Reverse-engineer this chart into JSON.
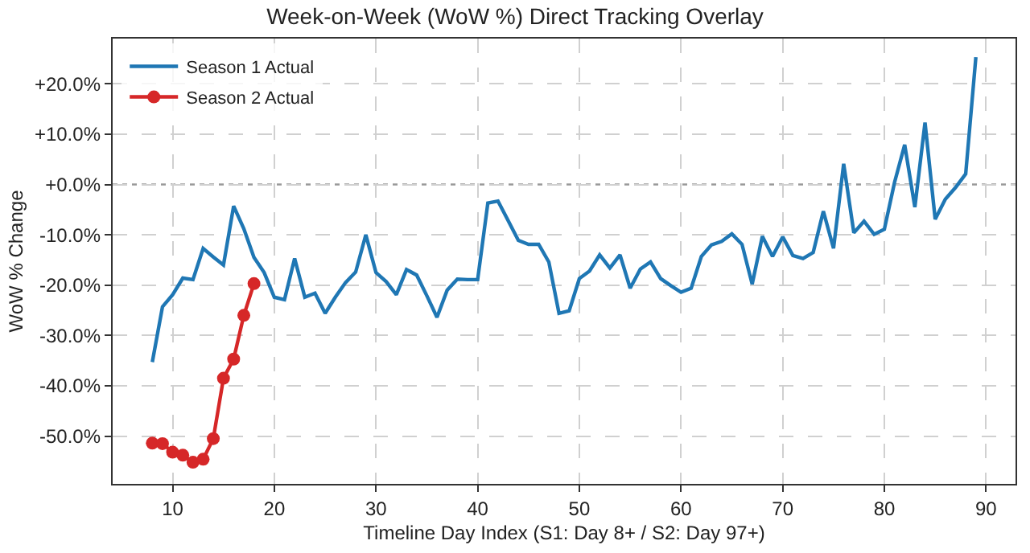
{
  "chart_data": {
    "type": "line",
    "title": "Week-on-Week (WoW %) Direct Tracking Overlay",
    "xlabel": "Timeline Day Index (S1: Day 8+ / S2: Day 97+)",
    "ylabel": "WoW % Change",
    "xlim": [
      4.1,
      92.9
    ],
    "xticks": [
      10,
      20,
      30,
      40,
      50,
      60,
      70,
      80,
      90
    ],
    "ylim": [
      -59.5,
      29
    ],
    "yticks": [
      {
        "value": -50,
        "label": "-50.0%"
      },
      {
        "value": -40,
        "label": "-40.0%"
      },
      {
        "value": -30,
        "label": "-30.0%"
      },
      {
        "value": -20,
        "label": "-20.0%"
      },
      {
        "value": -10,
        "label": "-10.0%"
      },
      {
        "value": 0,
        "label": "+0.0%"
      },
      {
        "value": 10,
        "label": "+10.0%"
      },
      {
        "value": 20,
        "label": "+20.0%"
      }
    ],
    "grid": true,
    "legend": "top left",
    "ref_lines": [
      {
        "axis": "y",
        "value": 0,
        "color": "#999999",
        "line_style": "dotted"
      }
    ],
    "series": [
      {
        "name": "Season 1 Actual",
        "color": "#1f77b4",
        "marker": "none",
        "x": [
          8,
          9,
          10,
          11,
          12,
          13,
          14,
          15,
          16,
          17,
          18,
          19,
          20,
          21,
          22,
          23,
          24,
          25,
          26,
          27,
          28,
          29,
          30,
          31,
          32,
          33,
          34,
          35,
          36,
          37,
          38,
          39,
          40,
          41,
          42,
          43,
          44,
          45,
          46,
          47,
          48,
          49,
          50,
          51,
          52,
          53,
          54,
          55,
          56,
          57,
          58,
          59,
          60,
          61,
          62,
          63,
          64,
          65,
          66,
          67,
          68,
          69,
          70,
          71,
          72,
          73,
          74,
          75,
          76,
          77,
          78,
          79,
          80,
          81,
          82,
          83,
          84,
          85,
          86,
          87,
          88,
          89
        ],
        "values": [
          -35.3,
          -24.3,
          -21.9,
          -18.6,
          -18.9,
          -12.7,
          -14.4,
          -16.0,
          -4.3,
          -8.8,
          -14.5,
          -17.5,
          -22.4,
          -22.9,
          -14.7,
          -22.4,
          -21.6,
          -25.6,
          -22.4,
          -19.5,
          -17.4,
          -10.0,
          -17.5,
          -19.3,
          -21.9,
          -16.9,
          -18.0,
          -22.1,
          -26.4,
          -21.0,
          -18.8,
          -18.9,
          -18.9,
          -3.7,
          -3.3,
          -7.2,
          -11.1,
          -11.9,
          -11.9,
          -15.4,
          -25.6,
          -25.1,
          -18.7,
          -17.2,
          -14.0,
          -16.6,
          -14.0,
          -20.6,
          -16.8,
          -15.4,
          -18.7,
          -20.1,
          -21.4,
          -20.6,
          -14.3,
          -12.0,
          -11.3,
          -9.8,
          -11.9,
          -19.8,
          -10.3,
          -14.3,
          -10.4,
          -14.1,
          -14.7,
          -13.5,
          -5.3,
          -12.7,
          4.1,
          -9.6,
          -7.3,
          -9.9,
          -8.9,
          0.4,
          7.9,
          -4.5,
          12.3,
          -6.9,
          -2.9,
          -0.6,
          2.1,
          25.3
        ]
      },
      {
        "name": "Season 2 Actual",
        "color": "#d62728",
        "marker": "circle",
        "x": [
          8,
          9,
          10,
          11,
          12,
          13,
          14,
          15,
          16,
          17,
          18
        ],
        "values": [
          -51.4,
          -51.5,
          -53.2,
          -53.8,
          -55.2,
          -54.6,
          -50.5,
          -38.5,
          -34.7,
          -26.0,
          -19.7
        ]
      }
    ]
  }
}
